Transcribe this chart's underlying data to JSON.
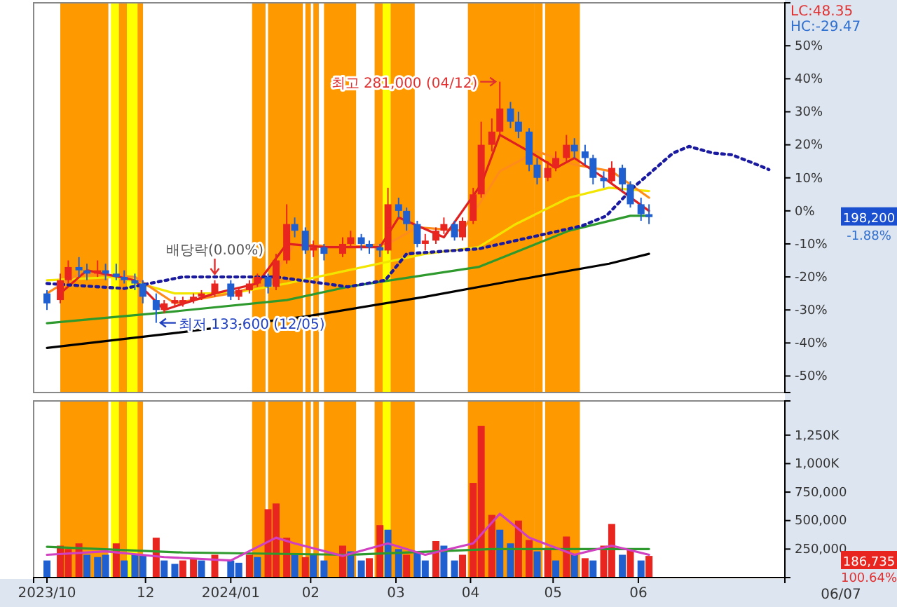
{
  "chart_data": [
    {
      "type": "candlestick",
      "x": [
        "2023-10-25",
        "2023-10-30",
        "2023-11-02",
        "2023-11-06",
        "2023-11-09",
        "2023-11-13",
        "2023-11-16",
        "2023-11-20",
        "2023-11-23",
        "2023-11-27",
        "2023-11-30",
        "2023-12-05",
        "2023-12-08",
        "2023-12-12",
        "2023-12-15",
        "2023-12-19",
        "2023-12-22",
        "2023-12-27",
        "2024-01-02",
        "2024-01-05",
        "2024-01-09",
        "2024-01-12",
        "2024-01-16",
        "2024-01-19",
        "2024-01-23",
        "2024-01-26",
        "2024-01-30",
        "2024-02-02",
        "2024-02-06",
        "2024-02-13",
        "2024-02-16",
        "2024-02-20",
        "2024-02-23",
        "2024-02-27",
        "2024-03-01",
        "2024-03-05",
        "2024-03-08",
        "2024-03-12",
        "2024-03-15",
        "2024-03-19",
        "2024-03-22",
        "2024-03-26",
        "2024-03-29",
        "2024-04-02",
        "2024-04-05",
        "2024-04-09",
        "2024-04-12",
        "2024-04-16",
        "2024-04-19",
        "2024-04-23",
        "2024-04-26",
        "2024-04-30",
        "2024-05-03",
        "2024-05-07",
        "2024-05-10",
        "2024-05-14",
        "2024-05-17",
        "2024-05-21",
        "2024-05-24",
        "2024-05-28",
        "2024-05-31",
        "2024-06-04",
        "2024-06-07"
      ],
      "ohlc": [
        [
          -25,
          -24,
          -30,
          -28
        ],
        [
          -27,
          -19,
          -28,
          -21
        ],
        [
          -21,
          -15,
          -22,
          -17
        ],
        [
          -17,
          -14,
          -20,
          -18
        ],
        [
          -18,
          -16,
          -21,
          -19
        ],
        [
          -19,
          -15,
          -20,
          -18
        ],
        [
          -18,
          -16,
          -21,
          -19
        ],
        [
          -19,
          -16,
          -21,
          -20
        ],
        [
          -20,
          -18,
          -22,
          -21
        ],
        [
          -21,
          -19,
          -24,
          -22
        ],
        [
          -22,
          -21,
          -28,
          -26
        ],
        [
          -27,
          -25,
          -33.9,
          -30
        ],
        [
          -30,
          -27,
          -31,
          -28
        ],
        [
          -28,
          -26,
          -29,
          -27
        ],
        [
          -28,
          -26,
          -29,
          -27
        ],
        [
          -27,
          -25,
          -28,
          -26
        ],
        [
          -26,
          -24,
          -27,
          -25
        ],
        [
          -25,
          -21,
          -26,
          -22
        ],
        [
          -22,
          -21,
          -27,
          -26
        ],
        [
          -26,
          -23,
          -27,
          -24
        ],
        [
          -24,
          -21,
          -25,
          -22
        ],
        [
          -22,
          -19,
          -23,
          -20
        ],
        [
          -20,
          -19,
          -25,
          -23
        ],
        [
          -23,
          -13,
          -24,
          -15
        ],
        [
          -15,
          2,
          -16,
          -4
        ],
        [
          -4,
          -2,
          -8,
          -6
        ],
        [
          -6,
          -5,
          -13,
          -12
        ],
        [
          -12,
          -9,
          -14,
          -11
        ],
        [
          -11,
          -10,
          -15,
          -13
        ],
        [
          -13,
          -8,
          -14,
          -10
        ],
        [
          -10,
          -6,
          -11,
          -8
        ],
        [
          -8,
          -7,
          -12,
          -10
        ],
        [
          -10,
          -9,
          -13,
          -11
        ],
        [
          -11,
          -10,
          -14,
          -12
        ],
        [
          -12,
          7,
          -13,
          2
        ],
        [
          2,
          4,
          -2,
          0
        ],
        [
          0,
          1,
          -6,
          -4
        ],
        [
          -4,
          -3,
          -11,
          -10
        ],
        [
          -10,
          -7,
          -12,
          -9
        ],
        [
          -9,
          -5,
          -10,
          -6
        ],
        [
          -6,
          -2,
          -7,
          -4
        ],
        [
          -4,
          -3,
          -9,
          -8
        ],
        [
          -8,
          -2,
          -9,
          -3
        ],
        [
          -3,
          7,
          -4,
          5
        ],
        [
          5,
          27,
          4,
          20
        ],
        [
          20,
          28,
          18,
          24
        ],
        [
          24,
          39.1,
          23,
          31
        ],
        [
          31,
          33,
          25,
          27
        ],
        [
          27,
          30,
          22,
          24
        ],
        [
          24,
          25,
          12,
          14
        ],
        [
          14,
          16,
          8,
          10
        ],
        [
          10,
          15,
          9,
          13
        ],
        [
          13,
          18,
          12,
          16
        ],
        [
          16,
          23,
          15,
          20
        ],
        [
          20,
          22,
          16,
          18
        ],
        [
          18,
          20,
          14,
          16
        ],
        [
          16,
          17,
          8,
          10
        ],
        [
          10,
          12,
          7,
          9
        ],
        [
          9,
          15,
          8,
          13
        ],
        [
          13,
          14,
          6,
          8
        ],
        [
          8,
          9,
          1,
          2
        ],
        [
          2,
          4,
          -3,
          -1
        ],
        [
          -1,
          2,
          -4,
          -1.88
        ]
      ],
      "colors": [
        "#1f5fd0",
        "#e8261f",
        "#e8261f",
        "#1f5fd0",
        "#1f5fd0",
        "#e8261f",
        "#1f5fd0",
        "#1f5fd0",
        "#1f5fd0",
        "#1f5fd0",
        "#1f5fd0",
        "#1f5fd0",
        "#e8261f",
        "#e8261f",
        "#e8261f",
        "#e8261f",
        "#e8261f",
        "#e8261f",
        "#1f5fd0",
        "#e8261f",
        "#e8261f",
        "#e8261f",
        "#1f5fd0",
        "#e8261f",
        "#e8261f",
        "#1f5fd0",
        "#1f5fd0",
        "#e8261f",
        "#1f5fd0",
        "#e8261f",
        "#e8261f",
        "#1f5fd0",
        "#1f5fd0",
        "#1f5fd0",
        "#e8261f",
        "#1f5fd0",
        "#1f5fd0",
        "#1f5fd0",
        "#e8261f",
        "#e8261f",
        "#e8261f",
        "#1f5fd0",
        "#e8261f",
        "#e8261f",
        "#e8261f",
        "#e8261f",
        "#e8261f",
        "#1f5fd0",
        "#1f5fd0",
        "#1f5fd0",
        "#1f5fd0",
        "#e8261f",
        "#e8261f",
        "#e8261f",
        "#1f5fd0",
        "#1f5fd0",
        "#1f5fd0",
        "#1f5fd0",
        "#e8261f",
        "#1f5fd0",
        "#1f5fd0",
        "#1f5fd0",
        "#1f5fd0"
      ],
      "series": [
        {
          "type": "line",
          "color": "#000000",
          "x": [
            "2023-10-25",
            "2023-12-12",
            "2024-01-30",
            "2024-03-15",
            "2024-04-18",
            "2024-05-23",
            "2024-06-07"
          ],
          "values": [
            -41.5,
            -37,
            -32,
            -26,
            -21,
            -16,
            -13
          ]
        },
        {
          "type": "line",
          "color": "#2e9a2e",
          "x": [
            "2023-10-25",
            "2023-12-05",
            "2024-01-23",
            "2024-02-15",
            "2024-04-04",
            "2024-05-08",
            "2024-05-31",
            "2024-06-07"
          ],
          "values": [
            -34,
            -31,
            -27,
            -23,
            -17,
            -6,
            -1.5,
            -1.5
          ]
        },
        {
          "type": "line",
          "color": "#f2e600",
          "x": [
            "2023-10-25",
            "2023-11-20",
            "2023-12-12",
            "2024-01-02",
            "2024-01-23",
            "2024-02-15",
            "2024-03-15",
            "2024-04-04",
            "2024-04-18",
            "2024-05-08",
            "2024-05-23",
            "2024-06-07"
          ],
          "values": [
            -21,
            -20,
            -25,
            -25,
            -22,
            -18,
            -13,
            -11,
            -4,
            4,
            7,
            6
          ]
        },
        {
          "type": "line",
          "color": "#ff8c1a",
          "x": [
            "2023-10-25",
            "2023-11-06",
            "2023-11-27",
            "2023-12-12",
            "2024-01-02",
            "2024-01-16",
            "2024-01-26",
            "2024-02-13",
            "2024-03-01",
            "2024-03-12",
            "2024-03-29",
            "2024-04-12",
            "2024-04-26",
            "2024-05-10",
            "2024-05-24",
            "2024-06-07"
          ],
          "values": [
            -25,
            -19,
            -20,
            -28,
            -25,
            -22,
            -10,
            -11,
            -10,
            -5,
            -6,
            12,
            18,
            14,
            12,
            4
          ]
        },
        {
          "type": "line",
          "color": "#e02020",
          "x": [
            "2023-10-30",
            "2023-11-09",
            "2023-11-27",
            "2023-12-08",
            "2023-12-27",
            "2024-01-12",
            "2024-01-23",
            "2024-02-06",
            "2024-02-27",
            "2024-03-05",
            "2024-03-22",
            "2024-04-05",
            "2024-04-12",
            "2024-04-23",
            "2024-05-03",
            "2024-05-10",
            "2024-05-21",
            "2024-06-07"
          ],
          "values": [
            -25,
            -18,
            -21,
            -30,
            -25,
            -22,
            -10,
            -11,
            -11,
            -2,
            -8,
            8,
            23,
            18,
            13,
            16,
            10,
            0
          ]
        },
        {
          "type": "line",
          "color": "#1a1aa0",
          "line_style": "dotted",
          "x": [
            "2023-10-25",
            "2023-11-23",
            "2023-12-15",
            "2024-01-19",
            "2024-02-15",
            "2024-02-29",
            "2024-03-08",
            "2024-04-04",
            "2024-05-13",
            "2024-05-22",
            "2024-06-01",
            "2024-06-16",
            "2024-06-22",
            "2024-07-01",
            "2024-07-08",
            "2024-07-16",
            "2024-07-22"
          ],
          "values": [
            -22,
            -23.5,
            -20,
            -20,
            -23,
            -21,
            -13,
            -11.5,
            -4.5,
            -1.5,
            7,
            17.5,
            19.5,
            17.5,
            17,
            14.5,
            12.5
          ]
        }
      ],
      "bands": [
        {
          "axis": "x",
          "from": "2023-10-30",
          "to": "2023-11-16",
          "color": "#ff9900"
        },
        {
          "axis": "x",
          "from": "2023-11-18",
          "to": "2023-11-20",
          "color": "#ffff00"
        },
        {
          "axis": "x",
          "from": "2023-11-21",
          "to": "2023-11-23",
          "color": "#ff9900"
        },
        {
          "axis": "x",
          "from": "2023-11-24",
          "to": "2023-11-27",
          "color": "#ffff00"
        },
        {
          "axis": "x",
          "from": "2023-11-28",
          "to": "2023-11-29",
          "color": "#ff9900"
        },
        {
          "axis": "x",
          "from": "2024-01-10",
          "to": "2024-01-14",
          "color": "#ff9900"
        },
        {
          "axis": "x",
          "from": "2024-01-16",
          "to": "2024-01-28",
          "color": "#ff9900"
        },
        {
          "axis": "x",
          "from": "2024-01-30",
          "to": "2024-01-31",
          "color": "#ff9900"
        },
        {
          "axis": "x",
          "from": "2024-02-02",
          "to": "2024-02-03",
          "color": "#ff9900"
        },
        {
          "axis": "x",
          "from": "2024-02-06",
          "to": "2024-02-17",
          "color": "#ff9900"
        },
        {
          "axis": "x",
          "from": "2024-02-25",
          "to": "2024-02-27",
          "color": "#ff9900"
        },
        {
          "axis": "x",
          "from": "2024-02-28",
          "to": "2024-03-01",
          "color": "#ffff00"
        },
        {
          "axis": "x",
          "from": "2024-03-02",
          "to": "2024-03-10",
          "color": "#ff9900"
        },
        {
          "axis": "x",
          "from": "2024-03-31",
          "to": "2024-04-24",
          "color": "#ff9900"
        },
        {
          "axis": "x",
          "from": "2024-04-25",
          "to": "2024-04-27",
          "color": "#ff9900"
        },
        {
          "axis": "x",
          "from": "2024-04-29",
          "to": "2024-05-11",
          "color": "#ff9900"
        }
      ],
      "xlim": [
        "2023-10-20",
        "2024-07-28"
      ],
      "ylim": [
        -55,
        63
      ],
      "yticks": [
        {
          "value": -50,
          "label": "-50%"
        },
        {
          "value": -40,
          "label": "-40%"
        },
        {
          "value": -30,
          "label": "-30%"
        },
        {
          "value": -20,
          "label": "-20%"
        },
        {
          "value": -10,
          "label": "-10%"
        },
        {
          "value": 0,
          "label": "0%"
        },
        {
          "value": 10,
          "label": "10%"
        },
        {
          "value": 20,
          "label": "20%"
        },
        {
          "value": 30,
          "label": "30%"
        },
        {
          "value": 40,
          "label": "40%"
        },
        {
          "value": 50,
          "label": "50%"
        }
      ],
      "tick_labels": "y",
      "annotations": [
        {
          "text": "최고 281,000 (04/12)",
          "x": "2024-04-12",
          "y": 39.1
        },
        {
          "text": "최저 133,600 (12/05)",
          "x": "2023-12-05",
          "y": -33.9
        },
        {
          "text": "배당락(0.00%)",
          "x": "2023-12-27",
          "y": -20
        },
        "LC:48.35",
        "HC:-29.47",
        "198,200",
        "-1.88%"
      ]
    },
    {
      "type": "bar",
      "x": [
        "2023-10-25",
        "2023-10-30",
        "2023-11-02",
        "2023-11-06",
        "2023-11-09",
        "2023-11-13",
        "2023-11-16",
        "2023-11-20",
        "2023-11-23",
        "2023-11-27",
        "2023-11-30",
        "2023-12-05",
        "2023-12-08",
        "2023-12-12",
        "2023-12-15",
        "2023-12-19",
        "2023-12-22",
        "2023-12-27",
        "2024-01-02",
        "2024-01-05",
        "2024-01-09",
        "2024-01-12",
        "2024-01-16",
        "2024-01-19",
        "2024-01-23",
        "2024-01-26",
        "2024-01-30",
        "2024-02-02",
        "2024-02-06",
        "2024-02-13",
        "2024-02-16",
        "2024-02-20",
        "2024-02-23",
        "2024-02-27",
        "2024-03-01",
        "2024-03-05",
        "2024-03-08",
        "2024-03-12",
        "2024-03-15",
        "2024-03-19",
        "2024-03-22",
        "2024-03-26",
        "2024-03-29",
        "2024-04-02",
        "2024-04-05",
        "2024-04-09",
        "2024-04-12",
        "2024-04-16",
        "2024-04-19",
        "2024-04-23",
        "2024-04-26",
        "2024-04-30",
        "2024-05-03",
        "2024-05-07",
        "2024-05-10",
        "2024-05-14",
        "2024-05-17",
        "2024-05-21",
        "2024-05-24",
        "2024-05-28",
        "2024-05-31",
        "2024-06-04",
        "2024-06-07"
      ],
      "series": [
        {
          "type": "bar",
          "values": [
            150000,
            280000,
            250000,
            300000,
            200000,
            180000,
            200000,
            300000,
            150000,
            200000,
            200000,
            350000,
            150000,
            120000,
            150000,
            170000,
            150000,
            200000,
            150000,
            130000,
            200000,
            180000,
            600000,
            650000,
            350000,
            200000,
            180000,
            200000,
            150000,
            280000,
            230000,
            150000,
            170000,
            460000,
            420000,
            250000,
            200000,
            230000,
            150000,
            320000,
            280000,
            150000,
            200000,
            830000,
            1330000,
            550000,
            420000,
            300000,
            500000,
            330000,
            230000,
            260000,
            150000,
            360000,
            200000,
            170000,
            150000,
            280000,
            470000,
            200000,
            250000,
            150000,
            190000
          ],
          "colors": [
            "#1f5fd0",
            "#e8261f",
            "#e8261f",
            "#e8261f",
            "#1f5fd0",
            "#1f5fd0",
            "#1f5fd0",
            "#e8261f",
            "#1f5fd0",
            "#1f5fd0",
            "#1f5fd0",
            "#e8261f",
            "#1f5fd0",
            "#1f5fd0",
            "#e8261f",
            "#e8261f",
            "#1f5fd0",
            "#e8261f",
            "#1f5fd0",
            "#1f5fd0",
            "#e8261f",
            "#1f5fd0",
            "#e8261f",
            "#e8261f",
            "#e8261f",
            "#1f5fd0",
            "#e8261f",
            "#1f5fd0",
            "#1f5fd0",
            "#e8261f",
            "#1f5fd0",
            "#1f5fd0",
            "#e8261f",
            "#e8261f",
            "#1f5fd0",
            "#1f5fd0",
            "#e8261f",
            "#1f5fd0",
            "#1f5fd0",
            "#e8261f",
            "#1f5fd0",
            "#1f5fd0",
            "#e8261f",
            "#e8261f",
            "#e8261f",
            "#e8261f",
            "#1f5fd0",
            "#1f5fd0",
            "#e8261f",
            "#e8261f",
            "#1f5fd0",
            "#e8261f",
            "#1f5fd0",
            "#e8261f",
            "#1f5fd0",
            "#e8261f",
            "#1f5fd0",
            "#e8261f",
            "#e8261f",
            "#1f5fd0",
            "#e8261f",
            "#1f5fd0",
            "#e8261f"
          ]
        },
        {
          "type": "line",
          "color": "#2e9a2e",
          "x": [
            "2023-10-25",
            "2023-12-15",
            "2024-02-15",
            "2024-04-09",
            "2024-06-07"
          ],
          "values": [
            270000,
            220000,
            200000,
            250000,
            250000
          ]
        },
        {
          "type": "line",
          "color": "#d040c0",
          "x": [
            "2023-10-25",
            "2023-11-16",
            "2023-12-08",
            "2024-01-02",
            "2024-01-19",
            "2024-01-26",
            "2024-02-13",
            "2024-03-01",
            "2024-03-15",
            "2024-04-02",
            "2024-04-12",
            "2024-04-23",
            "2024-05-10",
            "2024-05-24",
            "2024-06-07"
          ],
          "values": [
            200000,
            230000,
            180000,
            150000,
            350000,
            300000,
            190000,
            300000,
            200000,
            300000,
            560000,
            350000,
            200000,
            280000,
            200000
          ]
        }
      ],
      "bands": [
        {
          "axis": "x",
          "from": "2023-10-30",
          "to": "2023-11-16",
          "color": "#ff9900"
        },
        {
          "axis": "x",
          "from": "2023-11-18",
          "to": "2023-11-20",
          "color": "#ffff00"
        },
        {
          "axis": "x",
          "from": "2023-11-21",
          "to": "2023-11-23",
          "color": "#ff9900"
        },
        {
          "axis": "x",
          "from": "2023-11-24",
          "to": "2023-11-27",
          "color": "#ffff00"
        },
        {
          "axis": "x",
          "from": "2023-11-28",
          "to": "2023-11-29",
          "color": "#ff9900"
        },
        {
          "axis": "x",
          "from": "2024-01-10",
          "to": "2024-01-14",
          "color": "#ff9900"
        },
        {
          "axis": "x",
          "from": "2024-01-16",
          "to": "2024-01-28",
          "color": "#ff9900"
        },
        {
          "axis": "x",
          "from": "2024-01-30",
          "to": "2024-01-31",
          "color": "#ff9900"
        },
        {
          "axis": "x",
          "from": "2024-02-02",
          "to": "2024-02-03",
          "color": "#ff9900"
        },
        {
          "axis": "x",
          "from": "2024-02-06",
          "to": "2024-02-17",
          "color": "#ff9900"
        },
        {
          "axis": "x",
          "from": "2024-02-25",
          "to": "2024-02-27",
          "color": "#ff9900"
        },
        {
          "axis": "x",
          "from": "2024-02-28",
          "to": "2024-03-01",
          "color": "#ffff00"
        },
        {
          "axis": "x",
          "from": "2024-03-02",
          "to": "2024-03-10",
          "color": "#ff9900"
        },
        {
          "axis": "x",
          "from": "2024-03-31",
          "to": "2024-04-24",
          "color": "#ff9900"
        },
        {
          "axis": "x",
          "from": "2024-04-25",
          "to": "2024-04-27",
          "color": "#ff9900"
        },
        {
          "axis": "x",
          "from": "2024-04-29",
          "to": "2024-05-11",
          "color": "#ff9900"
        }
      ],
      "xlim": [
        "2023-10-20",
        "2024-07-28"
      ],
      "xticks": [
        {
          "value": "2023-10-25",
          "label": "2023/10"
        },
        {
          "value": "2023-12-01",
          "label": "12"
        },
        {
          "value": "2024-01-02",
          "label": "2024/01"
        },
        {
          "value": "2024-02-01",
          "label": "02"
        },
        {
          "value": "2024-03-04",
          "label": "03"
        },
        {
          "value": "2024-04-01",
          "label": "04"
        },
        {
          "value": "2024-05-02",
          "label": "05"
        },
        {
          "value": "2024-06-03",
          "label": "06"
        }
      ],
      "ylim": [
        0,
        1550000
      ],
      "yticks": [
        {
          "value": 250000,
          "label": "250,000"
        },
        {
          "value": 500000,
          "label": "500,000"
        },
        {
          "value": 750000,
          "label": "750,000"
        },
        {
          "value": 1000000,
          "label": "1,000K"
        },
        {
          "value": 1250000,
          "label": "1,250K"
        }
      ],
      "annotations": [
        "186,735",
        "100.64%",
        "06/07"
      ]
    }
  ]
}
